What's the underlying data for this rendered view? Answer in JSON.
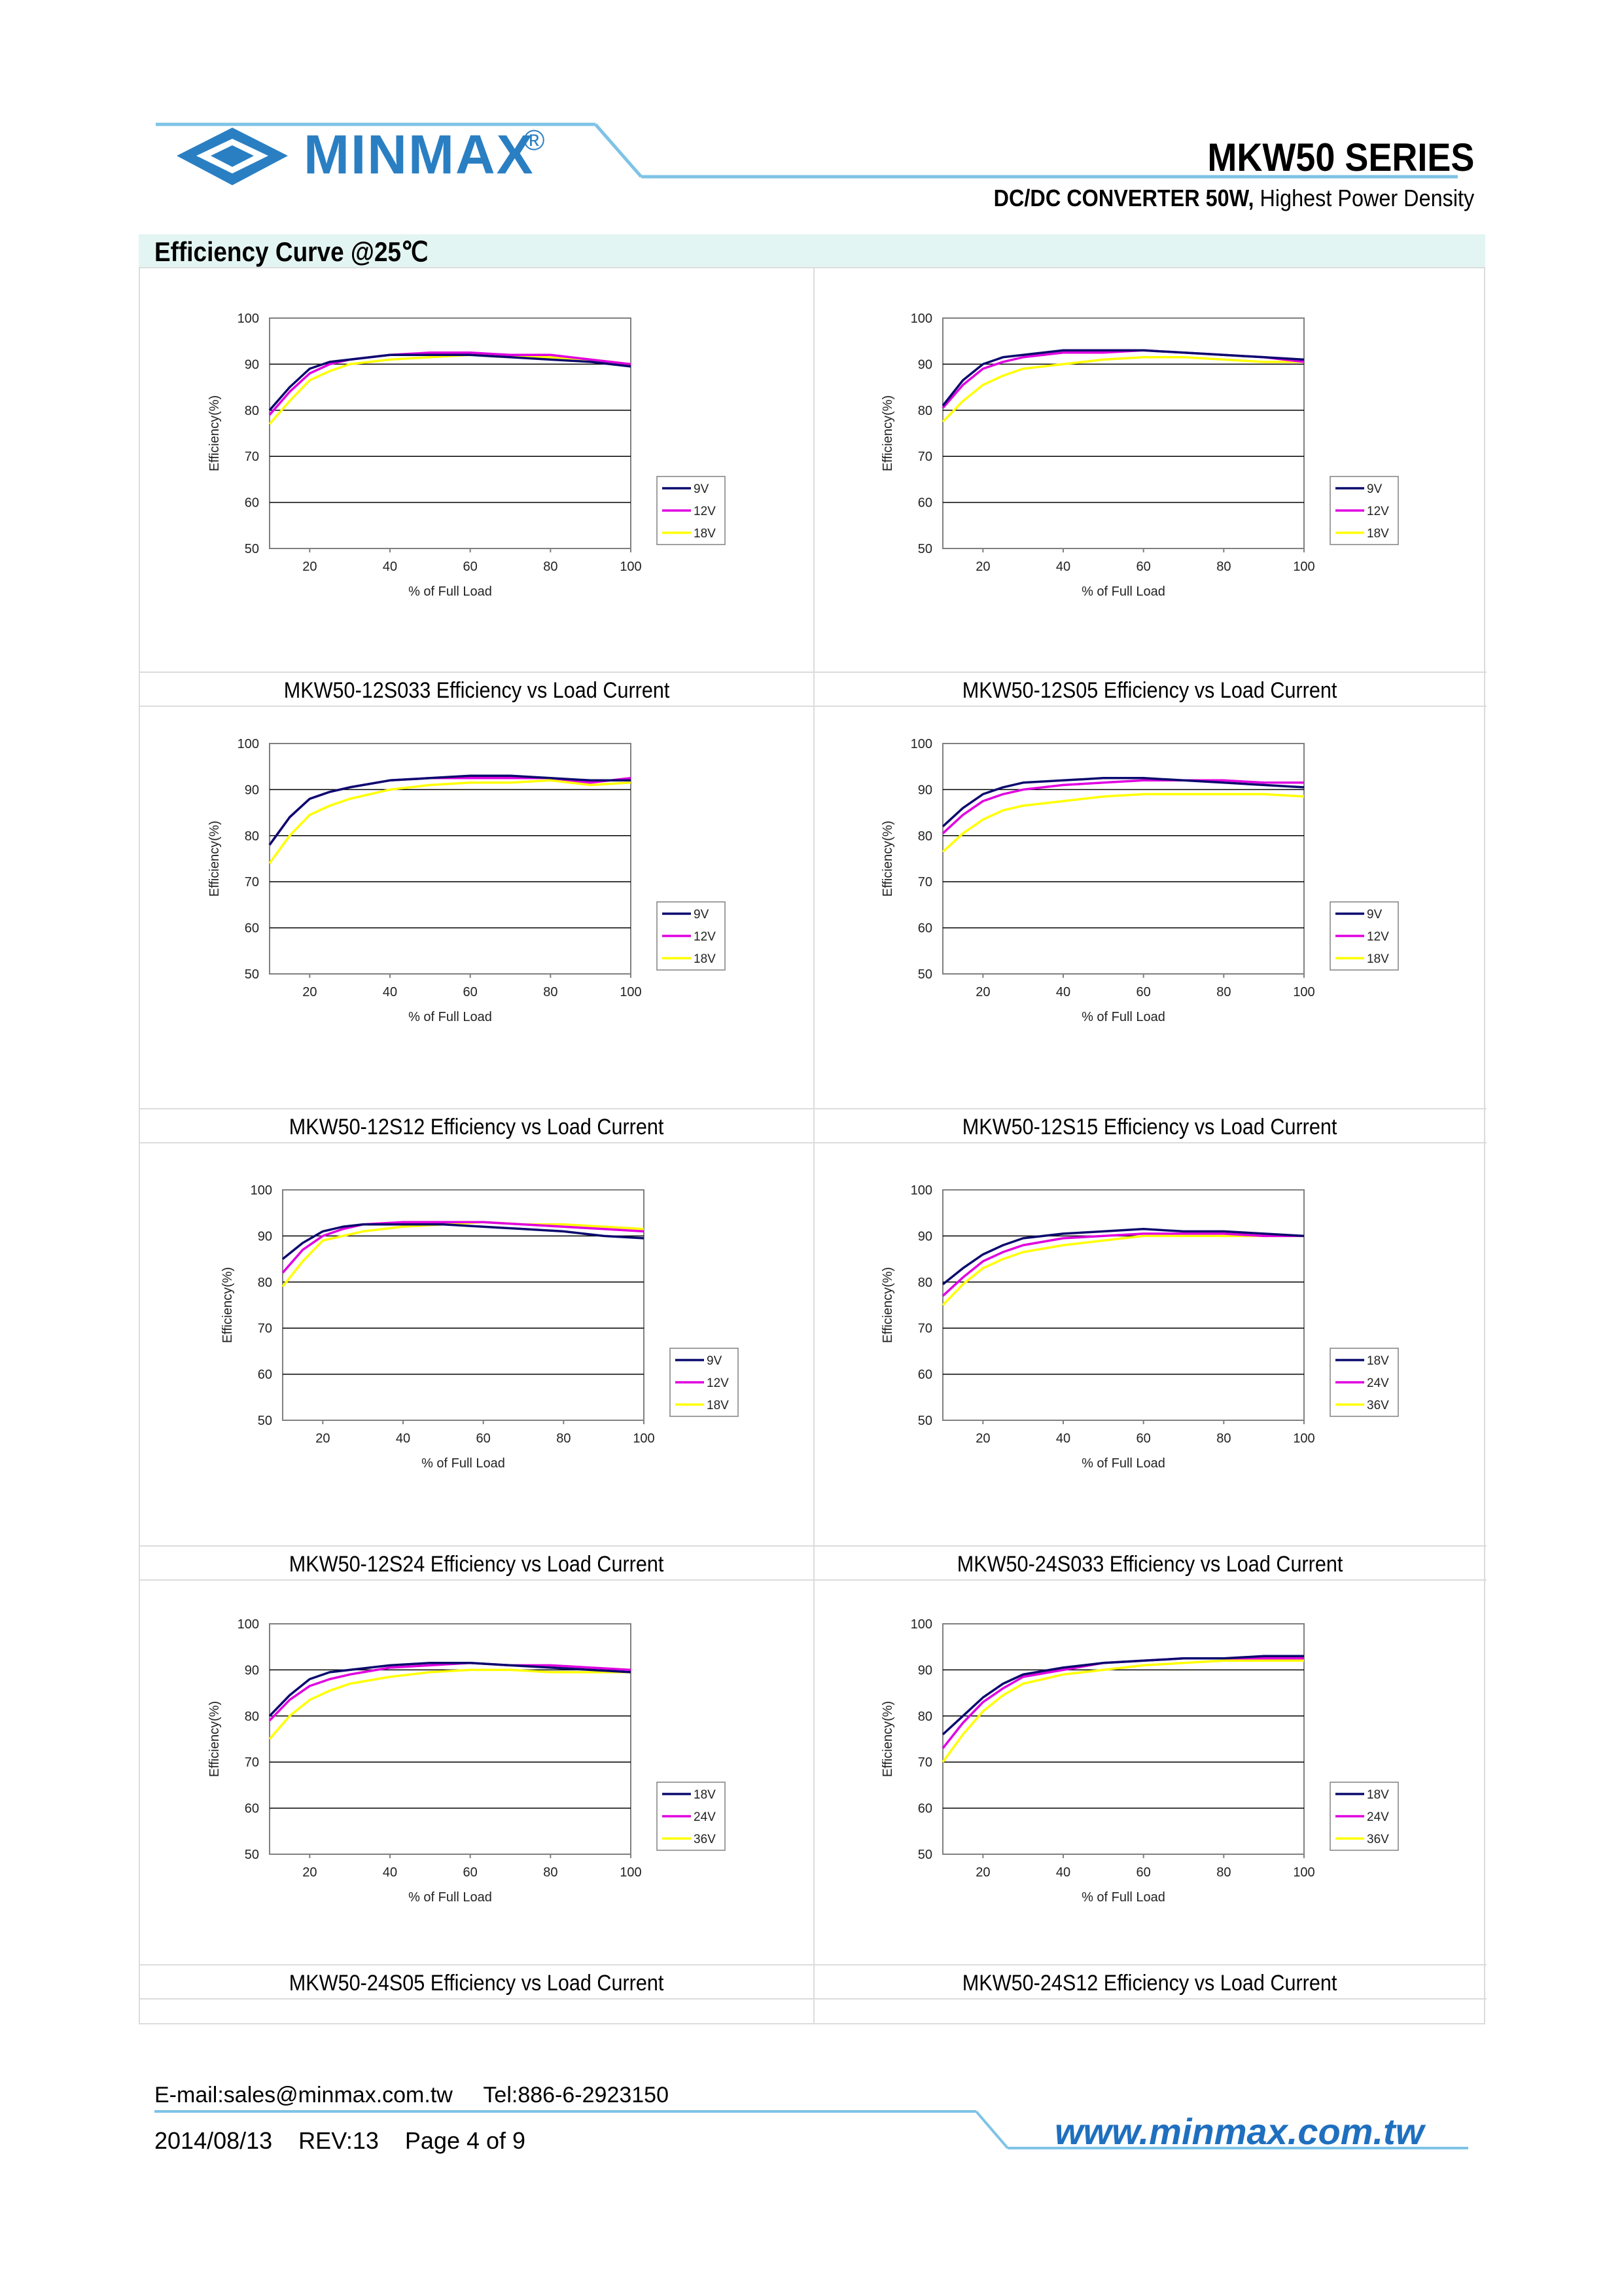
{
  "header": {
    "brand": "MINMAX",
    "registered": "®",
    "series": "MKW50 SERIES",
    "subtitle_bold": "DC/DC CONVERTER 50W,",
    "subtitle_rest": " Highest Power Density"
  },
  "section": {
    "title": "Efficiency Curve @25℃"
  },
  "footer": {
    "email_tel": "E-mail:sales@minmax.com.tw     Tel:886-6-2923150",
    "date_rev": "2014/08/13    REV:13    Page 4 of 9",
    "website": "www.minmax.com.tw"
  },
  "colors": {
    "brand_blue": "#2a7fc3",
    "line1": "#0a0a6e",
    "line2": "#e000e0",
    "line3": "#ffff00"
  },
  "chart_data": [
    {
      "type": "line",
      "caption": "MKW50-12S033 Efficiency vs Load Current",
      "xlabel": "% of Full Load",
      "ylabel": "Efficiency(%)",
      "xlim": [
        10,
        100
      ],
      "ylim": [
        50,
        100
      ],
      "xticks": [
        20,
        40,
        60,
        80,
        100
      ],
      "yticks": [
        50,
        60,
        70,
        80,
        90,
        100
      ],
      "grid": true,
      "legend": "right",
      "x": [
        10,
        15,
        20,
        25,
        30,
        40,
        50,
        60,
        70,
        80,
        90,
        100
      ],
      "series": [
        {
          "name": "9V",
          "values": [
            80,
            85,
            89,
            90.5,
            91,
            92,
            92,
            92,
            91.5,
            91,
            90.5,
            89.5
          ]
        },
        {
          "name": "12V",
          "values": [
            79,
            84,
            88,
            90,
            91,
            92,
            92.5,
            92.5,
            92,
            92,
            91,
            90
          ]
        },
        {
          "name": "18V",
          "values": [
            77,
            82,
            86.5,
            88.5,
            90,
            91,
            91.5,
            92,
            91.5,
            91.5,
            91,
            90
          ]
        }
      ]
    },
    {
      "type": "line",
      "caption": "MKW50-12S05 Efficiency vs Load Current",
      "xlabel": "% of Full Load",
      "ylabel": "Efficiency(%)",
      "xlim": [
        10,
        100
      ],
      "ylim": [
        50,
        100
      ],
      "xticks": [
        20,
        40,
        60,
        80,
        100
      ],
      "yticks": [
        50,
        60,
        70,
        80,
        90,
        100
      ],
      "grid": true,
      "legend": "right",
      "x": [
        10,
        15,
        20,
        25,
        30,
        40,
        50,
        60,
        70,
        80,
        90,
        100
      ],
      "series": [
        {
          "name": "9V",
          "values": [
            81,
            86.5,
            90,
            91.5,
            92,
            93,
            93,
            93,
            92.5,
            92,
            91.5,
            91
          ]
        },
        {
          "name": "12V",
          "values": [
            80.5,
            85.5,
            89,
            90.5,
            91.5,
            92.5,
            92.5,
            93,
            92.5,
            92,
            91.5,
            90.5
          ]
        },
        {
          "name": "18V",
          "values": [
            77.5,
            82,
            85.5,
            87.5,
            89,
            90,
            91,
            91.5,
            91.5,
            91,
            90.5,
            90.5
          ]
        }
      ]
    },
    {
      "type": "line",
      "caption": "MKW50-12S12 Efficiency vs Load Current",
      "xlabel": "% of Full Load",
      "ylabel": "Efficiency(%)",
      "xlim": [
        10,
        100
      ],
      "ylim": [
        50,
        100
      ],
      "xticks": [
        20,
        40,
        60,
        80,
        100
      ],
      "yticks": [
        50,
        60,
        70,
        80,
        90,
        100
      ],
      "grid": true,
      "legend": "right",
      "x": [
        10,
        15,
        20,
        25,
        30,
        40,
        50,
        60,
        70,
        80,
        90,
        100
      ],
      "series": [
        {
          "name": "9V",
          "values": [
            78,
            84,
            88,
            89.5,
            90.5,
            92,
            92.5,
            93,
            93,
            92.5,
            92,
            92
          ]
        },
        {
          "name": "12V",
          "values": [
            78,
            84,
            88,
            89.5,
            90.5,
            92,
            92.5,
            92.5,
            92.5,
            92.5,
            91.5,
            92.5
          ]
        },
        {
          "name": "18V",
          "values": [
            74,
            80,
            84.5,
            86.5,
            88,
            90,
            91,
            91.5,
            91.5,
            92,
            91,
            91.5
          ]
        }
      ]
    },
    {
      "type": "line",
      "caption": "MKW50-12S15 Efficiency vs Load Current",
      "xlabel": "% of Full Load",
      "ylabel": "Efficiency(%)",
      "xlim": [
        10,
        100
      ],
      "ylim": [
        50,
        100
      ],
      "xticks": [
        20,
        40,
        60,
        80,
        100
      ],
      "yticks": [
        50,
        60,
        70,
        80,
        90,
        100
      ],
      "grid": true,
      "legend": "right",
      "x": [
        10,
        15,
        20,
        25,
        30,
        40,
        50,
        60,
        70,
        80,
        90,
        100
      ],
      "series": [
        {
          "name": "9V",
          "values": [
            82,
            86,
            89,
            90.5,
            91.5,
            92,
            92.5,
            92.5,
            92,
            91.5,
            91,
            90.5
          ]
        },
        {
          "name": "12V",
          "values": [
            80.5,
            84.5,
            87.5,
            89,
            90,
            91,
            91.5,
            92,
            92,
            92,
            91.5,
            91.5
          ]
        },
        {
          "name": "18V",
          "values": [
            76.5,
            80.5,
            83.5,
            85.5,
            86.5,
            87.5,
            88.5,
            89,
            89,
            89,
            89,
            88.5
          ]
        }
      ]
    },
    {
      "type": "line",
      "caption": "MKW50-12S24 Efficiency vs Load Current",
      "xlabel": "% of Full Load",
      "ylabel": "Efficiency(%)",
      "xlim": [
        10,
        100
      ],
      "ylim": [
        50,
        100
      ],
      "xticks": [
        20,
        40,
        60,
        80,
        100
      ],
      "yticks": [
        50,
        60,
        70,
        80,
        90,
        100
      ],
      "grid": true,
      "legend": "right",
      "x": [
        10,
        15,
        20,
        25,
        30,
        40,
        50,
        60,
        70,
        80,
        90,
        100
      ],
      "series": [
        {
          "name": "9V",
          "values": [
            85,
            88.5,
            91,
            92,
            92.5,
            92.5,
            92.5,
            92,
            91.5,
            91,
            90,
            89.5
          ]
        },
        {
          "name": "12V",
          "values": [
            82,
            87,
            90,
            91.5,
            92.5,
            93,
            93,
            93,
            92.5,
            92,
            91.5,
            91
          ]
        },
        {
          "name": "18V",
          "values": [
            79,
            84.5,
            89,
            90,
            91,
            92,
            92.5,
            93,
            92.5,
            92.5,
            92,
            91.5
          ]
        }
      ]
    },
    {
      "type": "line",
      "caption": "MKW50-24S033 Efficiency vs Load Current",
      "xlabel": "% of Full Load",
      "ylabel": "Efficiency(%)",
      "xlim": [
        10,
        100
      ],
      "ylim": [
        50,
        100
      ],
      "xticks": [
        20,
        40,
        60,
        80,
        100
      ],
      "yticks": [
        50,
        60,
        70,
        80,
        90,
        100
      ],
      "grid": true,
      "legend": "right",
      "x": [
        10,
        15,
        20,
        25,
        30,
        40,
        50,
        60,
        70,
        80,
        90,
        100
      ],
      "series": [
        {
          "name": "18V",
          "values": [
            79.5,
            83,
            86,
            88,
            89.5,
            90.5,
            91,
            91.5,
            91,
            91,
            90.5,
            90
          ]
        },
        {
          "name": "24V",
          "values": [
            77,
            81,
            84.5,
            86.5,
            88,
            89.5,
            90,
            90.5,
            90.5,
            90.5,
            90,
            90
          ]
        },
        {
          "name": "36V",
          "values": [
            75,
            79.5,
            83,
            85,
            86.5,
            88,
            89,
            90,
            90,
            90,
            90,
            90
          ]
        }
      ]
    },
    {
      "type": "line",
      "caption": "MKW50-24S05 Efficiency vs Load Current",
      "xlabel": "% of Full Load",
      "ylabel": "Efficiency(%)",
      "xlim": [
        10,
        100
      ],
      "ylim": [
        50,
        100
      ],
      "xticks": [
        20,
        40,
        60,
        80,
        100
      ],
      "yticks": [
        50,
        60,
        70,
        80,
        90,
        100
      ],
      "grid": true,
      "legend": "right",
      "x": [
        10,
        15,
        20,
        25,
        30,
        40,
        50,
        60,
        70,
        80,
        90,
        100
      ],
      "series": [
        {
          "name": "18V",
          "values": [
            80,
            84.5,
            88,
            89.5,
            90,
            91,
            91.5,
            91.5,
            91,
            90.5,
            90,
            89.5
          ]
        },
        {
          "name": "24V",
          "values": [
            79,
            83.5,
            86.5,
            88,
            89,
            90.5,
            91,
            91.5,
            91,
            91,
            90.5,
            90
          ]
        },
        {
          "name": "36V",
          "values": [
            75,
            80,
            83.5,
            85.5,
            87,
            88.5,
            89.5,
            90,
            90,
            89.5,
            89.5,
            89.5
          ]
        }
      ]
    },
    {
      "type": "line",
      "caption": "MKW50-24S12 Efficiency vs Load Current",
      "xlabel": "% of Full Load",
      "ylabel": "Efficiency(%)",
      "xlim": [
        10,
        100
      ],
      "ylim": [
        50,
        100
      ],
      "xticks": [
        20,
        40,
        60,
        80,
        100
      ],
      "yticks": [
        50,
        60,
        70,
        80,
        90,
        100
      ],
      "grid": true,
      "legend": "right",
      "x": [
        10,
        15,
        20,
        25,
        30,
        40,
        50,
        60,
        70,
        80,
        90,
        100
      ],
      "series": [
        {
          "name": "18V",
          "values": [
            76,
            80,
            84,
            87,
            89,
            90.5,
            91.5,
            92,
            92.5,
            92.5,
            93,
            93
          ]
        },
        {
          "name": "24V",
          "values": [
            73,
            78.5,
            83,
            86,
            88.5,
            90,
            91.5,
            92,
            92.5,
            92.5,
            92.5,
            92.5
          ]
        },
        {
          "name": "36V",
          "values": [
            70,
            76,
            81,
            84.5,
            87,
            89,
            90,
            91,
            91.5,
            92,
            92,
            92
          ]
        }
      ]
    }
  ]
}
